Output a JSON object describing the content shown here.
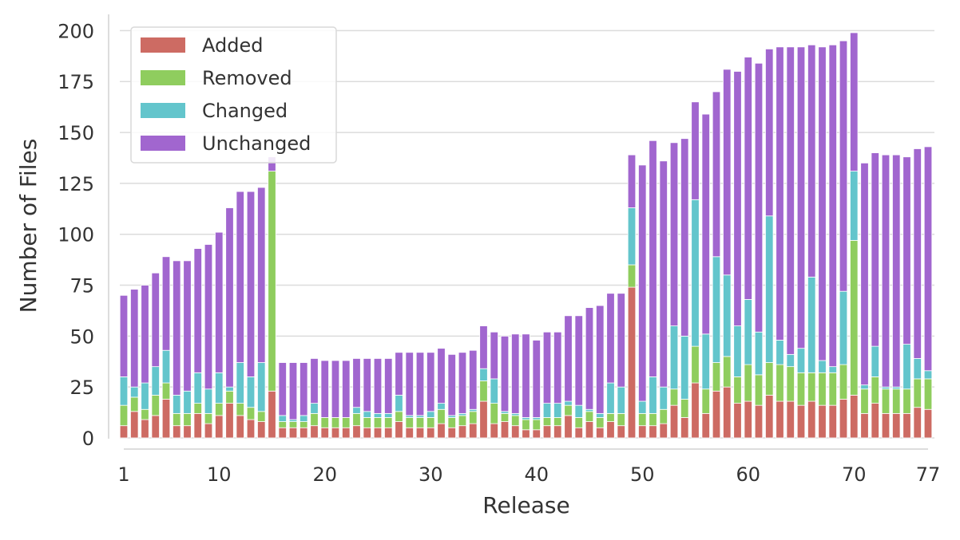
{
  "chart_data": {
    "type": "bar",
    "stacked": true,
    "title": "",
    "xlabel": "Release",
    "ylabel": "Number of Files",
    "ylim": [
      0,
      208
    ],
    "xlim": [
      1,
      77
    ],
    "x_ticks": [
      1,
      10,
      20,
      30,
      40,
      50,
      60,
      70,
      77
    ],
    "y_ticks": [
      0,
      25,
      50,
      75,
      100,
      125,
      150,
      175,
      200
    ],
    "grid": "horizontal",
    "legend_position": "top-left",
    "categories": [
      1,
      2,
      3,
      4,
      5,
      6,
      7,
      8,
      9,
      10,
      11,
      12,
      13,
      14,
      15,
      16,
      17,
      18,
      19,
      20,
      21,
      22,
      23,
      24,
      25,
      26,
      27,
      28,
      29,
      30,
      31,
      32,
      33,
      34,
      35,
      36,
      37,
      38,
      39,
      40,
      41,
      42,
      43,
      44,
      45,
      46,
      47,
      48,
      49,
      50,
      51,
      52,
      53,
      54,
      55,
      56,
      57,
      58,
      59,
      60,
      61,
      62,
      63,
      64,
      65,
      66,
      67,
      68,
      69,
      70,
      71,
      72,
      73,
      74,
      75,
      76,
      77
    ],
    "series": [
      {
        "name": "Added",
        "color": "#cd6b63",
        "values": [
          6,
          13,
          9,
          11,
          19,
          6,
          6,
          12,
          7,
          11,
          17,
          11,
          9,
          8,
          23,
          5,
          5,
          5,
          6,
          5,
          5,
          5,
          6,
          5,
          5,
          5,
          8,
          5,
          5,
          5,
          7,
          5,
          6,
          7,
          18,
          7,
          8,
          6,
          4,
          4,
          6,
          6,
          11,
          5,
          8,
          5,
          8,
          6,
          74,
          6,
          6,
          7,
          16,
          10,
          27,
          12,
          23,
          25,
          17,
          18,
          16,
          21,
          18,
          18,
          16,
          18,
          16,
          16,
          19,
          21,
          12,
          17,
          12,
          12,
          12,
          15,
          14
        ]
      },
      {
        "name": "Removed",
        "color": "#8fcd5e",
        "values": [
          10,
          7,
          5,
          10,
          8,
          6,
          6,
          5,
          5,
          6,
          6,
          6,
          6,
          5,
          108,
          3,
          3,
          3,
          6,
          5,
          5,
          5,
          6,
          5,
          5,
          5,
          5,
          5,
          5,
          5,
          7,
          5,
          5,
          6,
          10,
          10,
          4,
          5,
          5,
          5,
          4,
          4,
          5,
          5,
          5,
          5,
          4,
          6,
          11,
          6,
          6,
          7,
          8,
          9,
          18,
          12,
          14,
          15,
          13,
          18,
          15,
          16,
          18,
          17,
          16,
          14,
          16,
          16,
          17,
          76,
          12,
          13,
          12,
          12,
          12,
          14,
          15
        ]
      },
      {
        "name": "Changed",
        "color": "#63c5cc",
        "values": [
          14,
          5,
          13,
          14,
          16,
          9,
          11,
          15,
          12,
          15,
          2,
          20,
          15,
          24,
          0,
          3,
          1,
          3,
          5,
          0,
          0,
          0,
          3,
          3,
          2,
          2,
          8,
          1,
          1,
          3,
          3,
          1,
          1,
          1,
          6,
          12,
          1,
          1,
          1,
          1,
          7,
          7,
          2,
          6,
          1,
          2,
          15,
          13,
          28,
          6,
          18,
          11,
          31,
          31,
          72,
          27,
          52,
          40,
          25,
          32,
          21,
          72,
          12,
          6,
          12,
          47,
          6,
          3,
          36,
          34,
          2,
          15,
          1,
          1,
          22,
          10,
          4
        ]
      },
      {
        "name": "Unchanged",
        "color": "#a166cf",
        "values": [
          40,
          48,
          48,
          46,
          46,
          66,
          64,
          61,
          71,
          69,
          88,
          84,
          91,
          86,
          7,
          26,
          28,
          26,
          22,
          28,
          28,
          28,
          24,
          26,
          27,
          27,
          21,
          31,
          31,
          29,
          27,
          30,
          30,
          29,
          21,
          23,
          37,
          39,
          41,
          38,
          35,
          35,
          42,
          44,
          50,
          53,
          44,
          46,
          26,
          116,
          116,
          111,
          90,
          97,
          48,
          108,
          81,
          101,
          125,
          119,
          132,
          82,
          144,
          151,
          148,
          114,
          154,
          158,
          123,
          68,
          109,
          95,
          114,
          114,
          92,
          103,
          110
        ]
      }
    ]
  }
}
